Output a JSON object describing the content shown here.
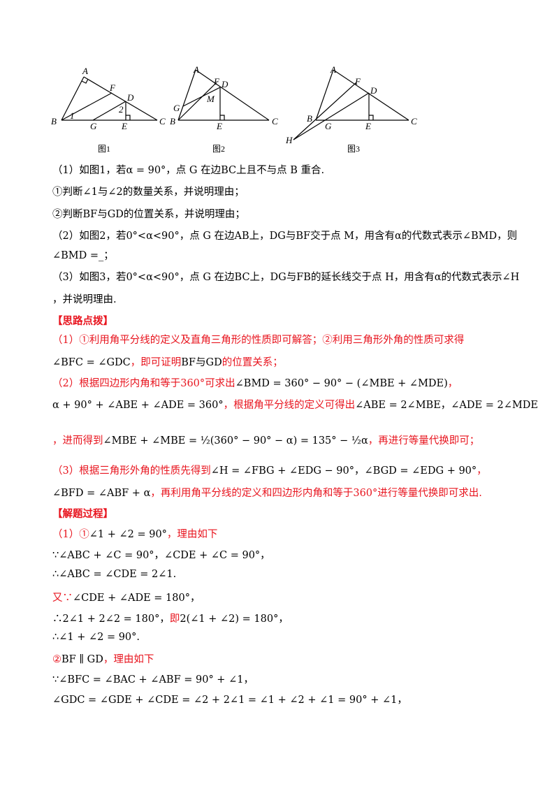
{
  "figures": [
    {
      "caption": "图1",
      "labels": [
        "A",
        "F",
        "D",
        "B",
        "G",
        "E",
        "C",
        "1",
        "2"
      ]
    },
    {
      "caption": "图2",
      "labels": [
        "A",
        "F",
        "D",
        "G",
        "M",
        "B",
        "E",
        "C"
      ]
    },
    {
      "caption": "图3",
      "labels": [
        "A",
        "F",
        "D",
        "B",
        "G",
        "E",
        "C",
        "H"
      ]
    }
  ],
  "lines": [
    [
      {
        "t": "（1）如图1，若α = 90°，点 G 在边BC上且不与点 B 重合."
      }
    ],
    [
      {
        "t": "①判断∠1与∠2的数量关系，并说明理由；"
      }
    ],
    [
      {
        "t": "②判断BF与GD的位置关系，并说明理由；"
      }
    ],
    [
      {
        "t": "（2）如图2，若0°<α<90°，点 G 在边AB上，DG与BF交于点 M，用含有α的代数式表示∠BMD，则"
      }
    ],
    [
      {
        "t": "∠BMD =_；"
      }
    ],
    [
      {
        "t": "（3）如图3，若0°<α<90°，点 G 在边BC上，DG与FB的延长线交于点 H，用含有α的代数式表示∠H"
      }
    ],
    [
      {
        "t": "，并说明理由."
      }
    ],
    [
      {
        "t": "【思路点拨】",
        "c": "red"
      }
    ],
    [
      {
        "t": "（1）①利用角平分线的定义及直角三角形的性质即可解答；②利用三角形外角的性质可求得",
        "c": "red"
      }
    ],
    [
      {
        "t": "∠BFC = ∠GDC"
      },
      {
        "t": "，即可证明",
        "c": "red"
      },
      {
        "t": "BF与GD"
      },
      {
        "t": "的位置关系；",
        "c": "red"
      }
    ],
    [
      {
        "t": "（2）根据四边形内角和等于360°可求出",
        "c": "red"
      },
      {
        "t": "∠BMD = 360° − 90° − (∠MBE + ∠MDE)"
      },
      {
        "t": "，",
        "c": "red"
      }
    ],
    [
      {
        "t": "α + 90° + ∠ABE + ∠ADE = 360°"
      },
      {
        "t": "，根据角平分线的定义可得出",
        "c": "red"
      },
      {
        "t": "∠ABE = 2∠MBE，∠ADE = 2∠MDE"
      }
    ],
    [
      {
        "t": "，进而得到",
        "c": "red"
      },
      {
        "t": "∠MBE + ∠MBE = ½(360° − 90° − α) = 135° − ½α"
      },
      {
        "t": "，再进行等量代换即可；",
        "c": "red"
      }
    ],
    [
      {
        "t": "（3）根据三角形外角的性质先得到",
        "c": "red"
      },
      {
        "t": "∠H = ∠FBG + ∠EDG − 90°，∠BGD = ∠EDG + 90°"
      },
      {
        "t": "，",
        "c": "red"
      }
    ],
    [
      {
        "t": "∠BFD = ∠ABF + α"
      },
      {
        "t": "，再利用角平分线的定义和四边形内角和等于360°进行等量代换即可求出.",
        "c": "red"
      }
    ],
    [
      {
        "t": "【解题过程】",
        "c": "red"
      }
    ],
    [
      {
        "t": "（1）①",
        "c": "red"
      },
      {
        "t": "∠1 + ∠2 = 90°"
      },
      {
        "t": "，理由如下",
        "c": "red"
      }
    ],
    [
      {
        "t": "∵∠ABC + ∠C = 90°，∠CDE + ∠C = 90°，"
      }
    ],
    [
      {
        "t": "∴∠ABC = ∠CDE = 2∠1."
      }
    ],
    [
      {
        "t": "又∵",
        "c": "red"
      },
      {
        "t": "∠CDE + ∠ADE = 180°，"
      }
    ],
    [
      {
        "t": "∴2∠1 + 2∠2 = 180°，"
      },
      {
        "t": "即",
        "c": "red"
      },
      {
        "t": "2(∠1 + ∠2) = 180°，"
      }
    ],
    [
      {
        "t": "∴∠1 + ∠2 = 90°."
      }
    ],
    [
      {
        "t": "②",
        "c": "red"
      },
      {
        "t": "BF ∥ GD"
      },
      {
        "t": "，理由如下",
        "c": "red"
      }
    ],
    [
      {
        "t": "∵∠BFC = ∠BAC + ∠ABF = 90° + ∠1，"
      }
    ],
    [
      {
        "t": "∠GDC = ∠GDE + ∠CDE = ∠2 + 2∠1 = ∠1 + ∠2 + ∠1 = 90° + ∠1，"
      }
    ]
  ]
}
